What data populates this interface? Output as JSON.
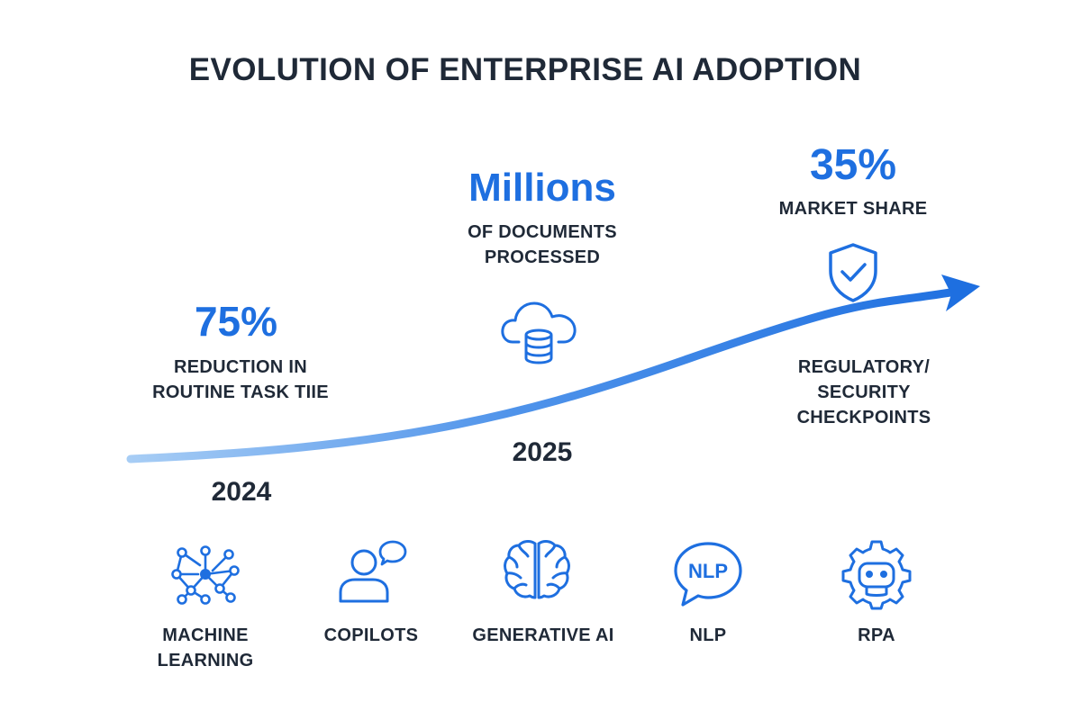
{
  "title": "EVOLUTION OF ENTERPRISE AI ADOPTION",
  "colors": {
    "accent": "#1e6fe0",
    "accent_light": "#a7cdf5",
    "text": "#1f2937"
  },
  "milestones": [
    {
      "value": "75%",
      "label_lines": [
        "REDUCTION IN",
        "ROUTINE TASK TIIE"
      ],
      "year": "2024"
    },
    {
      "value": "Millions",
      "label_lines": [
        "OF DOCUMENTS",
        "PROCESSED"
      ],
      "year": "2025",
      "icon": "cloud-database-icon"
    },
    {
      "value": "35%",
      "label_lines": [
        "MARKET SHARE"
      ],
      "icon": "shield-check-icon",
      "note_lines": [
        "REGULATORY/",
        "SECURITY",
        "CHECKPOINTS"
      ]
    }
  ],
  "categories": [
    {
      "label_lines": [
        "MACHINE",
        "LEARNING"
      ],
      "icon": "neural-network-icon"
    },
    {
      "label_lines": [
        "COPILOTS"
      ],
      "icon": "user-chat-icon"
    },
    {
      "label_lines": [
        "GENERATIVE AI"
      ],
      "icon": "brain-icon"
    },
    {
      "label_lines": [
        "NLP"
      ],
      "icon": "nlp-speech-bubble-icon",
      "icon_text": "NLP"
    },
    {
      "label_lines": [
        "RPA"
      ],
      "icon": "robot-gear-icon"
    }
  ]
}
